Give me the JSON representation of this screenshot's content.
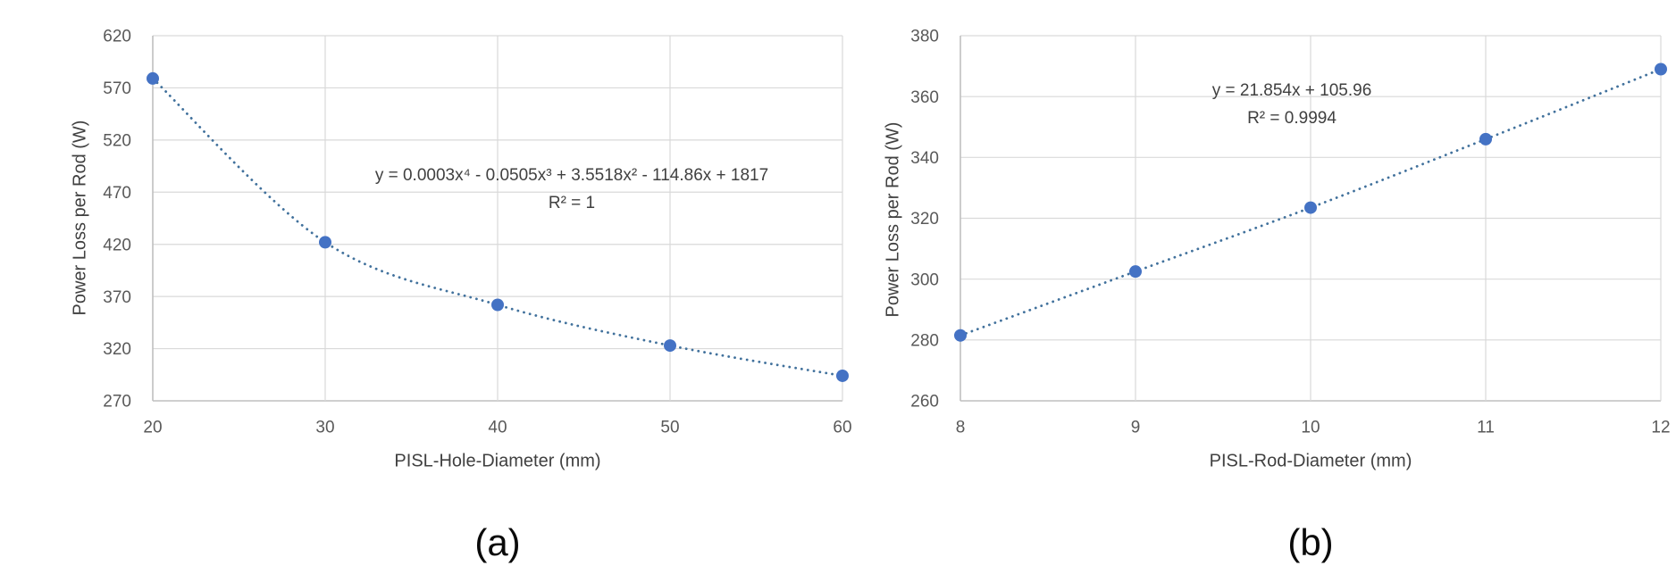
{
  "figure": {
    "background": "#ffffff",
    "gridline_color": "#d9d9d9",
    "axis_line_color": "#bfbfbf",
    "tick_label_color": "#595959"
  },
  "chart_data": [
    {
      "id": "a",
      "type": "scatter",
      "caption": "(a)",
      "xlabel": "PISL-Hole-Diameter (mm)",
      "ylabel": "Power Loss per Rod (W)",
      "x": [
        20,
        30,
        40,
        50,
        60
      ],
      "y": [
        579,
        422,
        362,
        323,
        294
      ],
      "xlim": [
        20,
        60
      ],
      "ylim": [
        270,
        620
      ],
      "xticks": [
        20,
        30,
        40,
        50,
        60
      ],
      "yticks": [
        270,
        320,
        370,
        420,
        470,
        520,
        570,
        620
      ],
      "grid": true,
      "legend": "none",
      "marker_color": "#4472c4",
      "trendline_color": "#41719c",
      "trendline": {
        "style": "dotted",
        "fit": "polynomial-degree-4",
        "equation": "y = 0.0003x⁴ - 0.0505x³ + 3.5518x² - 114.86x + 1817",
        "r2_label": "R² = 1"
      }
    },
    {
      "id": "b",
      "type": "scatter",
      "caption": "(b)",
      "xlabel": "PISL-Rod-Diameter (mm)",
      "ylabel": "Power Loss per Rod (W)",
      "x": [
        8,
        9,
        10,
        11,
        12
      ],
      "y": [
        281.5,
        302.5,
        323.5,
        346,
        369
      ],
      "xlim": [
        8,
        12
      ],
      "ylim": [
        260,
        380
      ],
      "xticks": [
        8,
        9,
        10,
        11,
        12
      ],
      "yticks": [
        260,
        280,
        300,
        320,
        340,
        360,
        380
      ],
      "grid": true,
      "legend": "none",
      "marker_color": "#4472c4",
      "trendline_color": "#41719c",
      "trendline": {
        "style": "dotted",
        "fit": "linear",
        "equation": "y = 21.854x + 105.96",
        "r2_label": "R² = 0.9994"
      }
    }
  ]
}
